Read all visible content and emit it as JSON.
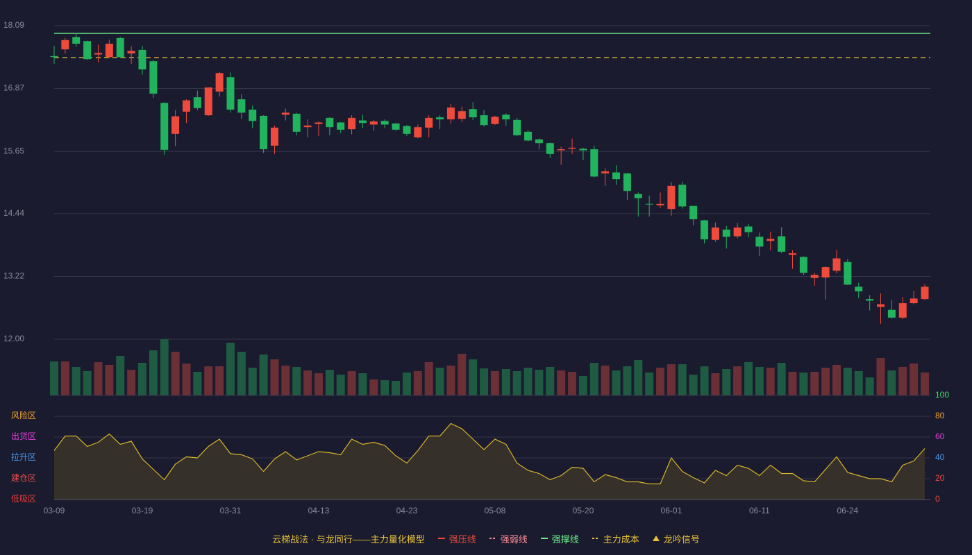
{
  "chart_data": {
    "type": "candlestick",
    "categories": [
      "03-09",
      null,
      null,
      null,
      null,
      null,
      null,
      null,
      "03-19",
      null,
      null,
      null,
      null,
      null,
      null,
      null,
      "03-31",
      null,
      null,
      null,
      null,
      null,
      null,
      null,
      "04-13",
      null,
      null,
      null,
      null,
      null,
      null,
      null,
      "04-23",
      null,
      null,
      null,
      null,
      null,
      null,
      null,
      "05-08",
      null,
      null,
      null,
      null,
      null,
      null,
      null,
      "05-20",
      null,
      null,
      null,
      null,
      null,
      null,
      null,
      "06-01",
      null,
      null,
      null,
      null,
      null,
      null,
      null,
      "06-11",
      null,
      null,
      null,
      null,
      null,
      null,
      null,
      "06-24",
      null,
      null,
      null,
      null,
      null,
      null,
      null
    ],
    "open": [
      17.5,
      17.63,
      17.87,
      17.79,
      17.53,
      17.48,
      17.85,
      17.55,
      17.62,
      17.4,
      16.59,
      15.99,
      16.42,
      16.7,
      16.35,
      16.81,
      17.09,
      16.66,
      16.46,
      16.34,
      15.76,
      16.36,
      16.38,
      16.12,
      16.18,
      16.3,
      16.21,
      16.08,
      16.25,
      16.17,
      16.24,
      16.19,
      16.14,
      15.92,
      16.11,
      16.31,
      16.27,
      16.28,
      16.47,
      16.35,
      16.18,
      16.36,
      16.26,
      16.03,
      15.88,
      15.81,
      15.67,
      15.7,
      15.7,
      15.69,
      15.22,
      15.24,
      15.22,
      14.82,
      14.63,
      14.6,
      14.53,
      15.0,
      14.59,
      14.31,
      13.93,
      14.13,
      14.0,
      14.19,
      13.99,
      13.91,
      14.0,
      13.64,
      13.6,
      13.19,
      13.2,
      13.33,
      13.5,
      13.02,
      12.78,
      12.63,
      12.57,
      12.42,
      12.7,
      12.78
    ],
    "high": [
      17.7,
      17.85,
      17.95,
      17.8,
      17.72,
      17.82,
      17.87,
      17.69,
      17.7,
      17.42,
      16.6,
      16.45,
      16.66,
      16.83,
      16.89,
      17.19,
      17.18,
      16.76,
      16.54,
      16.35,
      16.15,
      16.48,
      16.4,
      16.27,
      16.23,
      16.31,
      16.22,
      16.35,
      16.36,
      16.26,
      16.27,
      16.2,
      16.16,
      16.17,
      16.35,
      16.35,
      16.57,
      16.52,
      16.6,
      16.45,
      16.34,
      16.39,
      16.3,
      16.06,
      15.9,
      15.82,
      15.74,
      15.9,
      15.72,
      15.76,
      15.32,
      15.38,
      15.23,
      14.85,
      14.79,
      14.85,
      15.05,
      15.06,
      14.59,
      14.32,
      14.27,
      14.2,
      14.26,
      14.24,
      14.07,
      14.09,
      14.18,
      13.73,
      13.61,
      13.29,
      13.42,
      13.74,
      13.56,
      13.1,
      12.86,
      12.89,
      12.76,
      12.82,
      12.94,
      13.07
    ],
    "low": [
      17.35,
      17.55,
      17.68,
      17.42,
      17.38,
      17.46,
      17.46,
      17.35,
      17.14,
      16.69,
      15.58,
      15.75,
      16.2,
      16.45,
      16.34,
      16.71,
      16.4,
      16.28,
      16.1,
      15.62,
      15.6,
      16.25,
      15.96,
      15.92,
      15.95,
      15.96,
      16.0,
      15.98,
      16.1,
      16.05,
      16.1,
      16.05,
      15.95,
      15.9,
      15.92,
      16.08,
      16.19,
      16.22,
      16.26,
      16.13,
      16.16,
      16.14,
      15.95,
      15.84,
      15.69,
      15.52,
      15.39,
      15.6,
      15.48,
      15.14,
      14.98,
      15.0,
      14.71,
      14.38,
      14.38,
      14.55,
      14.4,
      14.54,
      14.21,
      13.86,
      13.89,
      13.76,
      13.96,
      13.98,
      13.62,
      13.73,
      13.67,
      13.37,
      13.25,
      13.04,
      12.77,
      13.28,
      13.05,
      12.8,
      12.56,
      12.3,
      12.4,
      12.39,
      12.68,
      12.76
    ],
    "close": [
      17.48,
      17.81,
      17.74,
      17.44,
      17.56,
      17.74,
      17.48,
      17.6,
      17.24,
      16.77,
      15.68,
      16.33,
      16.64,
      16.49,
      16.89,
      17.17,
      16.46,
      16.4,
      16.24,
      15.69,
      16.11,
      16.4,
      16.03,
      16.15,
      16.21,
      16.12,
      16.07,
      16.3,
      16.2,
      16.23,
      16.17,
      16.07,
      15.99,
      16.12,
      16.3,
      16.27,
      16.5,
      16.43,
      16.31,
      16.16,
      16.32,
      16.27,
      15.96,
      15.86,
      15.81,
      15.6,
      15.69,
      15.72,
      15.67,
      15.16,
      15.26,
      15.11,
      14.88,
      14.74,
      14.62,
      14.63,
      14.98,
      14.58,
      14.33,
      13.94,
      14.17,
      13.99,
      14.17,
      14.08,
      13.8,
      13.95,
      13.7,
      13.67,
      13.29,
      13.25,
      13.4,
      13.57,
      13.06,
      12.93,
      12.75,
      12.68,
      12.42,
      12.7,
      12.79,
      13.02
    ],
    "up_color": "#ef4b3c",
    "down_color": "#22b35e",
    "ylim": [
      12,
      18.09
    ],
    "yticks": [
      {
        "value": 12,
        "label": "12.00"
      },
      13.22,
      14.44,
      15.65,
      16.87,
      18.09
    ],
    "grid": true,
    "lines": [
      {
        "name": "强撑线",
        "value": 17.94,
        "color": "#6ef08a",
        "style": "solid"
      },
      {
        "name": "主力成本",
        "value": 17.47,
        "color": "#e8c23a",
        "style": "dashed"
      }
    ],
    "volume": {
      "values": [
        49,
        49,
        41,
        35,
        48,
        44,
        57,
        37,
        47,
        65,
        81,
        63,
        46,
        34,
        42,
        42,
        76,
        63,
        40,
        59,
        52,
        43,
        41,
        36,
        32,
        37,
        30,
        35,
        32,
        23,
        22,
        21,
        33,
        35,
        48,
        40,
        43,
        60,
        52,
        39,
        35,
        38,
        35,
        40,
        37,
        41,
        36,
        34,
        28,
        47,
        43,
        36,
        42,
        51,
        33,
        40,
        45,
        45,
        30,
        42,
        32,
        38,
        42,
        48,
        41,
        40,
        47,
        34,
        33,
        34,
        40,
        44,
        40,
        35,
        26,
        54,
        36,
        41,
        46,
        33
      ],
      "up_color": "#6b2f36",
      "down_color": "#1f5a42"
    },
    "oscillator": {
      "values": [
        47,
        61,
        61,
        51,
        55,
        63,
        53,
        56,
        39,
        29,
        19,
        34,
        41,
        40,
        51,
        58,
        44,
        43,
        39,
        27,
        39,
        46,
        38,
        42,
        46,
        45,
        43,
        58,
        53,
        55,
        52,
        42,
        35,
        47,
        61,
        61,
        73,
        68,
        58,
        48,
        58,
        53,
        35,
        28,
        25,
        19,
        23,
        31,
        30,
        17,
        24,
        21,
        17,
        17,
        15,
        15,
        40,
        27,
        21,
        16,
        28,
        23,
        33,
        30,
        23,
        33,
        25,
        25,
        18,
        17,
        29,
        41,
        26,
        23,
        20,
        20,
        17,
        33,
        37,
        49
      ],
      "color": "#d9b52a",
      "fill": "#35302a",
      "ylim": [
        0,
        100
      ],
      "yticks": [
        0,
        20,
        40,
        60,
        80,
        100
      ],
      "ytick_colors": [
        "#ef4b3c",
        "#ef4b3c",
        "#4a9cf0",
        "#e040e0",
        "#f0a030",
        "#3ee060"
      ],
      "zones": [
        {
          "label": "风险区",
          "value": 80,
          "color": "#f0a030"
        },
        {
          "label": "出货区",
          "value": 60,
          "color": "#e040e0"
        },
        {
          "label": "拉升区",
          "value": 40,
          "color": "#4a9cf0"
        },
        {
          "label": "建仓区",
          "value": 20,
          "color": "#f05050"
        },
        {
          "label": "低吸区",
          "value": 0,
          "color": "#ef3c3c"
        }
      ]
    },
    "legend": {
      "title": "云梯战法 · 与龙同行——主力量化模型",
      "title_color": "#e8c23a",
      "items": [
        {
          "name": "强压线",
          "color": "#ef4b3c",
          "style": "solid"
        },
        {
          "name": "强弱线",
          "color": "#ff8a9a",
          "style": "dashed"
        },
        {
          "name": "强撑线",
          "color": "#6ef08a",
          "style": "solid"
        },
        {
          "name": "主力成本",
          "color": "#e8c23a",
          "style": "dashed"
        },
        {
          "name": "龙吟信号",
          "color": "#e8c23a",
          "style": "triangle"
        }
      ]
    }
  }
}
